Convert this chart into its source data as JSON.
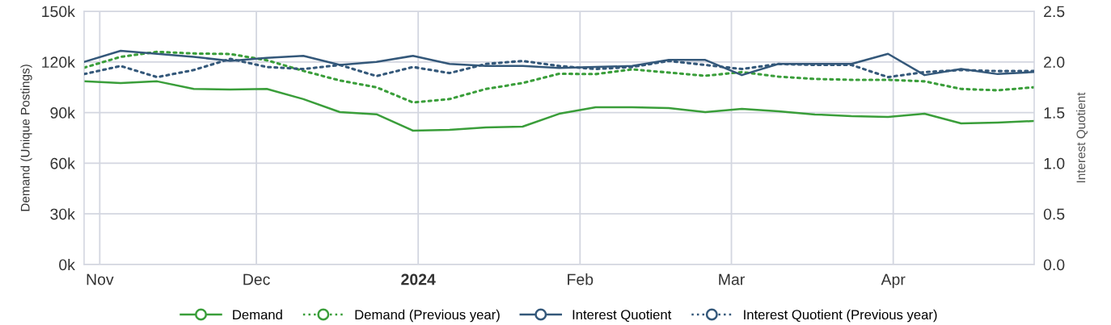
{
  "chart_data": {
    "type": "line",
    "ylabel": "Demand (Unique Postings)",
    "y2label": "Interest Quotient",
    "x": [
      "2023-10-29",
      "2023-11-05",
      "2023-11-12",
      "2023-11-19",
      "2023-11-26",
      "2023-12-03",
      "2023-12-10",
      "2023-12-17",
      "2023-12-24",
      "2023-12-31",
      "2024-01-07",
      "2024-01-14",
      "2024-01-21",
      "2024-01-28",
      "2024-02-04",
      "2024-02-11",
      "2024-02-18",
      "2024-02-25",
      "2024-03-03",
      "2024-03-10",
      "2024-03-17",
      "2024-03-24",
      "2024-03-31",
      "2024-04-07",
      "2024-04-14",
      "2024-04-21",
      "2024-04-28"
    ],
    "series": [
      {
        "name": "Demand",
        "color": "#3a9e3a",
        "line_style": "solid",
        "values": [
          108.5,
          107.5,
          108.5,
          104,
          103.7,
          104,
          98,
          90.3,
          89,
          79.3,
          79.8,
          81.2,
          81.7,
          89.3,
          93.2,
          93.2,
          92.7,
          90.3,
          92.2,
          90.8,
          88.9,
          87.9,
          87.4,
          89.3,
          83.6,
          84.1,
          85
        ]
      },
      {
        "name": "Demand (Previous year)",
        "color": "#3a9e3a",
        "line_style": "dotted",
        "values": [
          116.6,
          123,
          126,
          125,
          124.7,
          121,
          114.7,
          109,
          105,
          96,
          98,
          104,
          107.5,
          113,
          112.8,
          115.6,
          113.7,
          111.8,
          114,
          111.3,
          109.9,
          109.4,
          109.4,
          108.5,
          104,
          103.2,
          105
        ]
      },
      {
        "name": "Interest Quotient",
        "color": "#34587a",
        "line_style": "solid",
        "axis": "y2",
        "values": [
          2.0,
          2.11,
          2.08,
          2.05,
          2.01,
          2.04,
          2.06,
          1.97,
          2.0,
          2.06,
          1.98,
          1.96,
          1.96,
          1.94,
          1.95,
          1.96,
          2.02,
          2.02,
          1.87,
          1.98,
          1.98,
          1.98,
          2.08,
          1.87,
          1.93,
          1.88,
          1.9
        ]
      },
      {
        "name": "Interest Quotient (Previous year)",
        "color": "#34587a",
        "line_style": "dotted",
        "axis": "y2",
        "values": [
          1.88,
          1.96,
          1.85,
          1.92,
          2.03,
          1.95,
          1.93,
          1.97,
          1.86,
          1.95,
          1.89,
          1.98,
          2.01,
          1.96,
          1.93,
          1.95,
          2.01,
          1.97,
          1.93,
          1.98,
          1.97,
          1.97,
          1.85,
          1.9,
          1.92,
          1.91,
          1.91
        ]
      }
    ],
    "xlim": [
      "2023-10-29",
      "2024-04-28"
    ],
    "xticks": [
      {
        "value": "2023-11-01",
        "label": "Nov"
      },
      {
        "value": "2023-12-01",
        "label": "Dec"
      },
      {
        "value": "2024-01-01",
        "label": "2024"
      },
      {
        "value": "2024-02-01",
        "label": "Feb"
      },
      {
        "value": "2024-03-01",
        "label": "Mar"
      },
      {
        "value": "2024-04-01",
        "label": "Apr"
      }
    ],
    "ylim": [
      0,
      150
    ],
    "yticks": [
      {
        "value": 0,
        "label": "0k"
      },
      {
        "value": 30,
        "label": "30k"
      },
      {
        "value": 60,
        "label": "60k"
      },
      {
        "value": 90,
        "label": "90k"
      },
      {
        "value": 120,
        "label": "120k"
      },
      {
        "value": 150,
        "label": "150k"
      }
    ],
    "y2lim": [
      0,
      2.5
    ],
    "y2ticks": [
      {
        "value": 0,
        "label": "0.0"
      },
      {
        "value": 0.5,
        "label": "0.5"
      },
      {
        "value": 1.0,
        "label": "1.0"
      },
      {
        "value": 1.5,
        "label": "1.5"
      },
      {
        "value": 2.0,
        "label": "2.0"
      },
      {
        "value": 2.5,
        "label": "2.5"
      }
    ],
    "grid": true,
    "legend": "bottom"
  }
}
